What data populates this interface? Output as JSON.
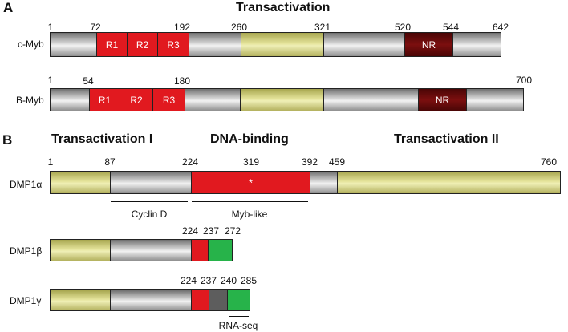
{
  "panel_a": {
    "letter": "A",
    "title": "Transactivation",
    "cmyb": {
      "label": "c-Myb",
      "ticks": [
        "1",
        "72",
        "192",
        "260",
        "321",
        "520",
        "544",
        "642"
      ],
      "domains": [
        "R1",
        "R2",
        "R3",
        "NR"
      ]
    },
    "bmyb": {
      "label": "B-Myb",
      "ticks": [
        "1",
        "54",
        "180",
        "700"
      ],
      "domains": [
        "R1",
        "R2",
        "R3",
        "NR"
      ]
    }
  },
  "panel_b": {
    "letter": "B",
    "titles": [
      "Transactivation I",
      "DNA-binding",
      "Transactivation II"
    ],
    "dmp1a": {
      "label": "DMP1α",
      "ticks": [
        "1",
        "87",
        "224",
        "319",
        "392",
        "459",
        "760"
      ],
      "star": "*"
    },
    "annotations": [
      "Cyclin D",
      "Myb-like"
    ],
    "dmp1b": {
      "label": "DMP1β",
      "ticks": [
        "224",
        "237",
        "272"
      ]
    },
    "dmp1g": {
      "label": "DMP1γ",
      "ticks": [
        "224",
        "237",
        "240",
        "285"
      ],
      "annotation": "RNA-seq"
    }
  },
  "colors": {
    "grey_segment": "#c8c8c8",
    "yellow_segment": "#e4e39a",
    "red_domain": "#e1191f",
    "dark_red_domain": "#7c0f0f",
    "green_segment": "#27b34a",
    "dark_grey_segment": "#5d5d5d"
  }
}
